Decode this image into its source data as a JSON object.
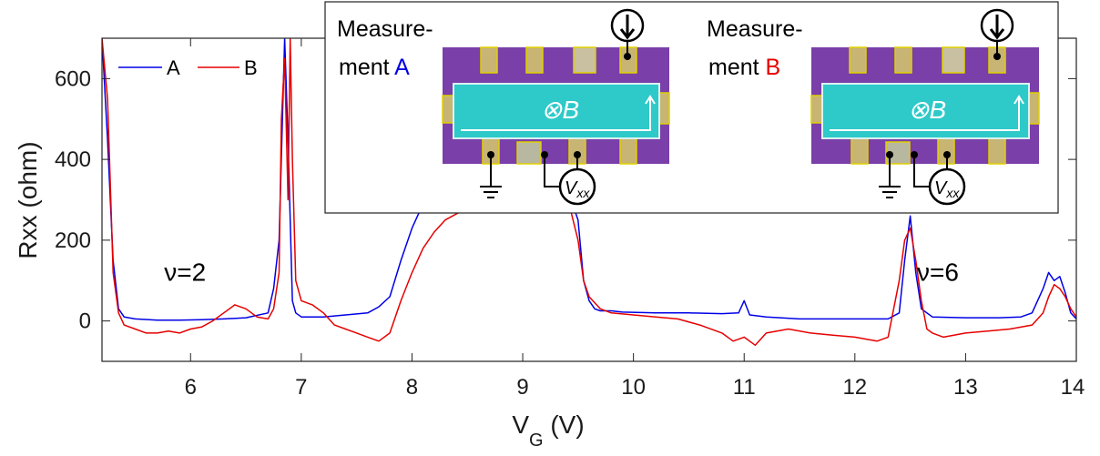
{
  "chart_data": {
    "type": "line",
    "xlabel": "V",
    "xlabel_sub": "G",
    "xlabel_unit": " (V)",
    "ylabel": "Rxx (ohm)",
    "xlim": [
      5.2,
      14
    ],
    "ylim": [
      -100,
      700
    ],
    "xticks": [
      6,
      7,
      8,
      9,
      10,
      11,
      12,
      13,
      14
    ],
    "yticks": [
      0,
      200,
      400,
      600
    ],
    "grid": false,
    "legend": "top-left",
    "annotations": [
      {
        "text": "ν=2",
        "x": 5.95,
        "y": 100
      },
      {
        "text": "ν=6",
        "x": 12.75,
        "y": 100
      }
    ],
    "series": [
      {
        "name": "A",
        "color": "#0000e6",
        "x": [
          5.2,
          5.25,
          5.3,
          5.35,
          5.4,
          5.5,
          5.7,
          5.9,
          6.1,
          6.3,
          6.5,
          6.7,
          6.75,
          6.8,
          6.85,
          6.88,
          6.92,
          6.95,
          7.0,
          7.2,
          7.4,
          7.6,
          7.7,
          7.8,
          7.9,
          8.0,
          8.1,
          8.2,
          8.6,
          9.0,
          9.4,
          9.5,
          9.55,
          9.6,
          9.65,
          9.7,
          9.8,
          9.9,
          10.2,
          10.5,
          10.8,
          10.95,
          11.0,
          11.05,
          11.2,
          11.5,
          12.0,
          12.3,
          12.4,
          12.45,
          12.5,
          12.55,
          12.6,
          12.7,
          13.0,
          13.3,
          13.5,
          13.6,
          13.7,
          13.75,
          13.8,
          13.85,
          13.9,
          13.95,
          14.0
        ],
        "y": [
          700,
          450,
          150,
          30,
          10,
          5,
          2,
          2,
          3,
          5,
          8,
          20,
          80,
          200,
          700,
          450,
          50,
          20,
          10,
          10,
          15,
          20,
          35,
          60,
          150,
          230,
          290,
          320,
          330,
          340,
          330,
          250,
          100,
          50,
          30,
          25,
          25,
          22,
          20,
          20,
          18,
          20,
          50,
          15,
          10,
          5,
          5,
          5,
          20,
          150,
          260,
          120,
          30,
          10,
          8,
          8,
          10,
          20,
          80,
          120,
          100,
          110,
          70,
          20,
          5
        ]
      },
      {
        "name": "B",
        "color": "#e60000",
        "x": [
          5.2,
          5.25,
          5.28,
          5.3,
          5.35,
          5.4,
          5.5,
          5.6,
          5.7,
          5.8,
          5.9,
          6.0,
          6.1,
          6.2,
          6.3,
          6.4,
          6.5,
          6.6,
          6.7,
          6.75,
          6.8,
          6.82,
          6.85,
          6.88,
          6.9,
          6.92,
          6.95,
          7.0,
          7.1,
          7.2,
          7.3,
          7.4,
          7.5,
          7.6,
          7.7,
          7.8,
          7.9,
          8.0,
          8.1,
          8.2,
          8.3,
          8.5,
          9.0,
          9.4,
          9.5,
          9.55,
          9.6,
          9.7,
          9.8,
          10.0,
          10.2,
          10.4,
          10.6,
          10.8,
          10.9,
          11.0,
          11.1,
          11.2,
          11.4,
          11.6,
          11.8,
          12.0,
          12.2,
          12.3,
          12.4,
          12.45,
          12.5,
          12.55,
          12.6,
          12.65,
          12.7,
          12.8,
          13.0,
          13.2,
          13.4,
          13.6,
          13.7,
          13.75,
          13.8,
          13.85,
          13.9,
          13.95,
          14.0
        ],
        "y": [
          700,
          550,
          300,
          120,
          20,
          -10,
          -20,
          -30,
          -30,
          -25,
          -30,
          -20,
          -15,
          0,
          20,
          40,
          30,
          10,
          5,
          30,
          120,
          500,
          650,
          300,
          700,
          400,
          100,
          50,
          40,
          20,
          -10,
          -20,
          -30,
          -40,
          -50,
          -30,
          50,
          120,
          180,
          220,
          250,
          280,
          300,
          310,
          200,
          100,
          60,
          30,
          20,
          15,
          10,
          5,
          -10,
          -30,
          -50,
          -40,
          -60,
          -30,
          -20,
          -30,
          -35,
          -40,
          -50,
          -40,
          100,
          200,
          230,
          150,
          50,
          -20,
          -30,
          -40,
          -30,
          -25,
          -20,
          -10,
          20,
          60,
          90,
          80,
          60,
          30,
          10
        ]
      }
    ]
  },
  "inset": {
    "panel_a": {
      "title_line1": "Measure-",
      "title_line2": "ment ",
      "title_letter": "A",
      "field_label": "⊗B",
      "voltmeter_label": "V",
      "voltmeter_sub": "xx"
    },
    "panel_b": {
      "title_line1": "Measure-",
      "title_line2": "ment ",
      "title_letter": "B",
      "field_label": "⊗B",
      "voltmeter_label": "V",
      "voltmeter_sub": "xx"
    },
    "colors": {
      "substrate": "#7a3fa8",
      "channel": "#2ec9c9",
      "contact": "#c8b473",
      "letter_a": "#0000e6",
      "letter_b": "#e60000"
    }
  }
}
